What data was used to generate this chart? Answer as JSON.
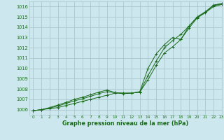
{
  "title": "Graphe pression niveau de la mer (hPa)",
  "background_color": "#cce8ee",
  "grid_color": "#aac8cc",
  "line_color": "#1a6b1a",
  "marker_color": "#1a6b1a",
  "xlim": [
    -0.5,
    23
  ],
  "ylim": [
    1005.5,
    1016.5
  ],
  "xticks": [
    0,
    1,
    2,
    3,
    4,
    5,
    6,
    7,
    8,
    9,
    10,
    11,
    12,
    13,
    14,
    15,
    16,
    17,
    18,
    19,
    20,
    21,
    22,
    23
  ],
  "yticks": [
    1006,
    1007,
    1008,
    1009,
    1010,
    1011,
    1012,
    1013,
    1014,
    1015,
    1016
  ],
  "series1": [
    1005.9,
    1006.0,
    1006.1,
    1006.2,
    1006.4,
    1006.6,
    1006.8,
    1007.0,
    1007.2,
    1007.4,
    1007.6,
    1007.6,
    1007.6,
    1007.7,
    1008.9,
    1010.3,
    1011.5,
    1012.1,
    1012.8,
    1013.9,
    1014.9,
    1015.4,
    1016.0,
    1016.2
  ],
  "series2": [
    1005.9,
    1006.0,
    1006.15,
    1006.35,
    1006.6,
    1006.85,
    1007.05,
    1007.3,
    1007.55,
    1007.75,
    1007.65,
    1007.6,
    1007.6,
    1007.7,
    1009.3,
    1010.7,
    1012.0,
    1012.7,
    1013.3,
    1014.1,
    1014.95,
    1015.45,
    1016.1,
    1016.25
  ],
  "series3": [
    1005.9,
    1006.0,
    1006.2,
    1006.45,
    1006.7,
    1007.0,
    1007.2,
    1007.45,
    1007.7,
    1007.9,
    1007.65,
    1007.55,
    1007.6,
    1007.75,
    1010.0,
    1011.4,
    1012.3,
    1013.0,
    1012.8,
    1014.1,
    1015.0,
    1015.5,
    1016.15,
    1016.3
  ]
}
